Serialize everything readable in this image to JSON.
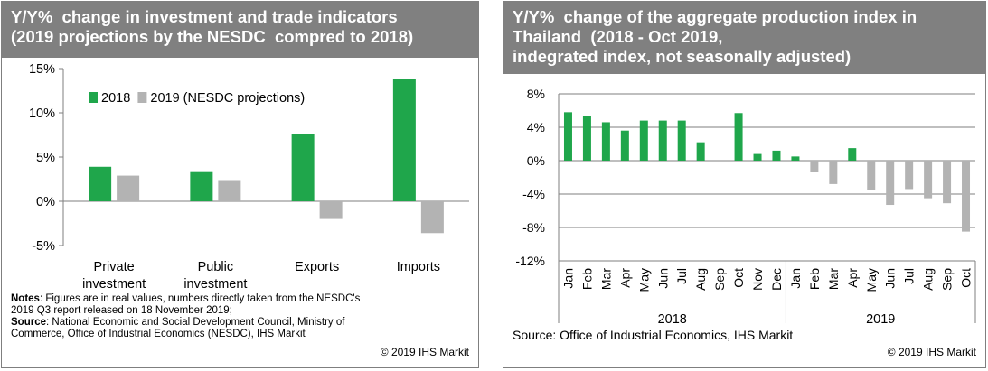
{
  "left": {
    "title": [
      "Y/Y%  change in investment and trade indicators",
      "(2019 projections by the NESDC  compred to 2018)"
    ],
    "notes": {
      "notes_label": "Notes",
      "notes_text": ": Figures are in real values, numbers directly taken from the NESDC's 2019 Q3 report released on 18 November 2019;",
      "source_label": "Source",
      "source_text": ": National Economic and Social Development Council, Ministry of Commerce, Office of Industrial Economics (NESDC), IHS Markit"
    },
    "copyright": "© 2019 IHS Markit"
  },
  "right": {
    "title": [
      "Y/Y%  change of the aggregate production index in",
      "Thailand  (2018 - Oct 2019,",
      "indegrated index, not seasonally adjusted)"
    ],
    "source": "Source: Office of Industrial Economics, IHS Markit",
    "copyright": "© 2019 IHS Markit"
  },
  "colors": {
    "green": "#1fa64b",
    "gray": "#b3b3b3",
    "title_bg": "#808080"
  },
  "chart_data": [
    {
      "type": "bar",
      "categories": [
        [
          "Private",
          "investment"
        ],
        [
          "Public",
          "investment"
        ],
        [
          "Exports"
        ],
        [
          "Imports"
        ]
      ],
      "series": [
        {
          "name": "2018",
          "color": "#1fa64b",
          "values": [
            3.9,
            3.4,
            7.6,
            13.8
          ]
        },
        {
          "name": "2019 (NESDC projections)",
          "color": "#b3b3b3",
          "values": [
            2.9,
            2.4,
            -2.0,
            -3.6
          ]
        }
      ],
      "ylim": [
        -5,
        15
      ],
      "yticks": [
        -5,
        0,
        5,
        10,
        15
      ],
      "ytick_labels": [
        "-5%",
        "0%",
        "5%",
        "10%",
        "15%"
      ],
      "legend": "top-left",
      "grid": false
    },
    {
      "type": "bar",
      "categories": [
        "Jan",
        "Feb",
        "Mar",
        "Apr",
        "May",
        "Jun",
        "Jul",
        "Aug",
        "Sep",
        "Oct",
        "Nov",
        "Dec",
        "Jan",
        "Feb",
        "Mar",
        "Apr",
        "May",
        "Jun",
        "Jul",
        "Aug",
        "Sep",
        "Oct"
      ],
      "groups": [
        {
          "label": "2018",
          "count": 12
        },
        {
          "label": "2019",
          "count": 10
        }
      ],
      "values": [
        5.8,
        5.3,
        4.6,
        3.6,
        4.8,
        4.8,
        4.8,
        2.2,
        0.0,
        5.7,
        0.8,
        1.2,
        0.5,
        -1.3,
        -2.8,
        1.5,
        -3.5,
        -5.3,
        -3.4,
        -4.5,
        -5.1,
        -8.5
      ],
      "bar_colors": [
        "#1fa64b",
        "#1fa64b",
        "#1fa64b",
        "#1fa64b",
        "#1fa64b",
        "#1fa64b",
        "#1fa64b",
        "#1fa64b",
        "#1fa64b",
        "#1fa64b",
        "#1fa64b",
        "#1fa64b",
        "#1fa64b",
        "#b3b3b3",
        "#b3b3b3",
        "#1fa64b",
        "#b3b3b3",
        "#b3b3b3",
        "#b3b3b3",
        "#b3b3b3",
        "#b3b3b3",
        "#b3b3b3"
      ],
      "ylim": [
        -12,
        8
      ],
      "yticks": [
        -12,
        -8,
        -4,
        0,
        4,
        8
      ],
      "ytick_labels": [
        "-12%",
        "-8%",
        "-4%",
        "0%",
        "4%",
        "8%"
      ],
      "grid": true
    }
  ]
}
